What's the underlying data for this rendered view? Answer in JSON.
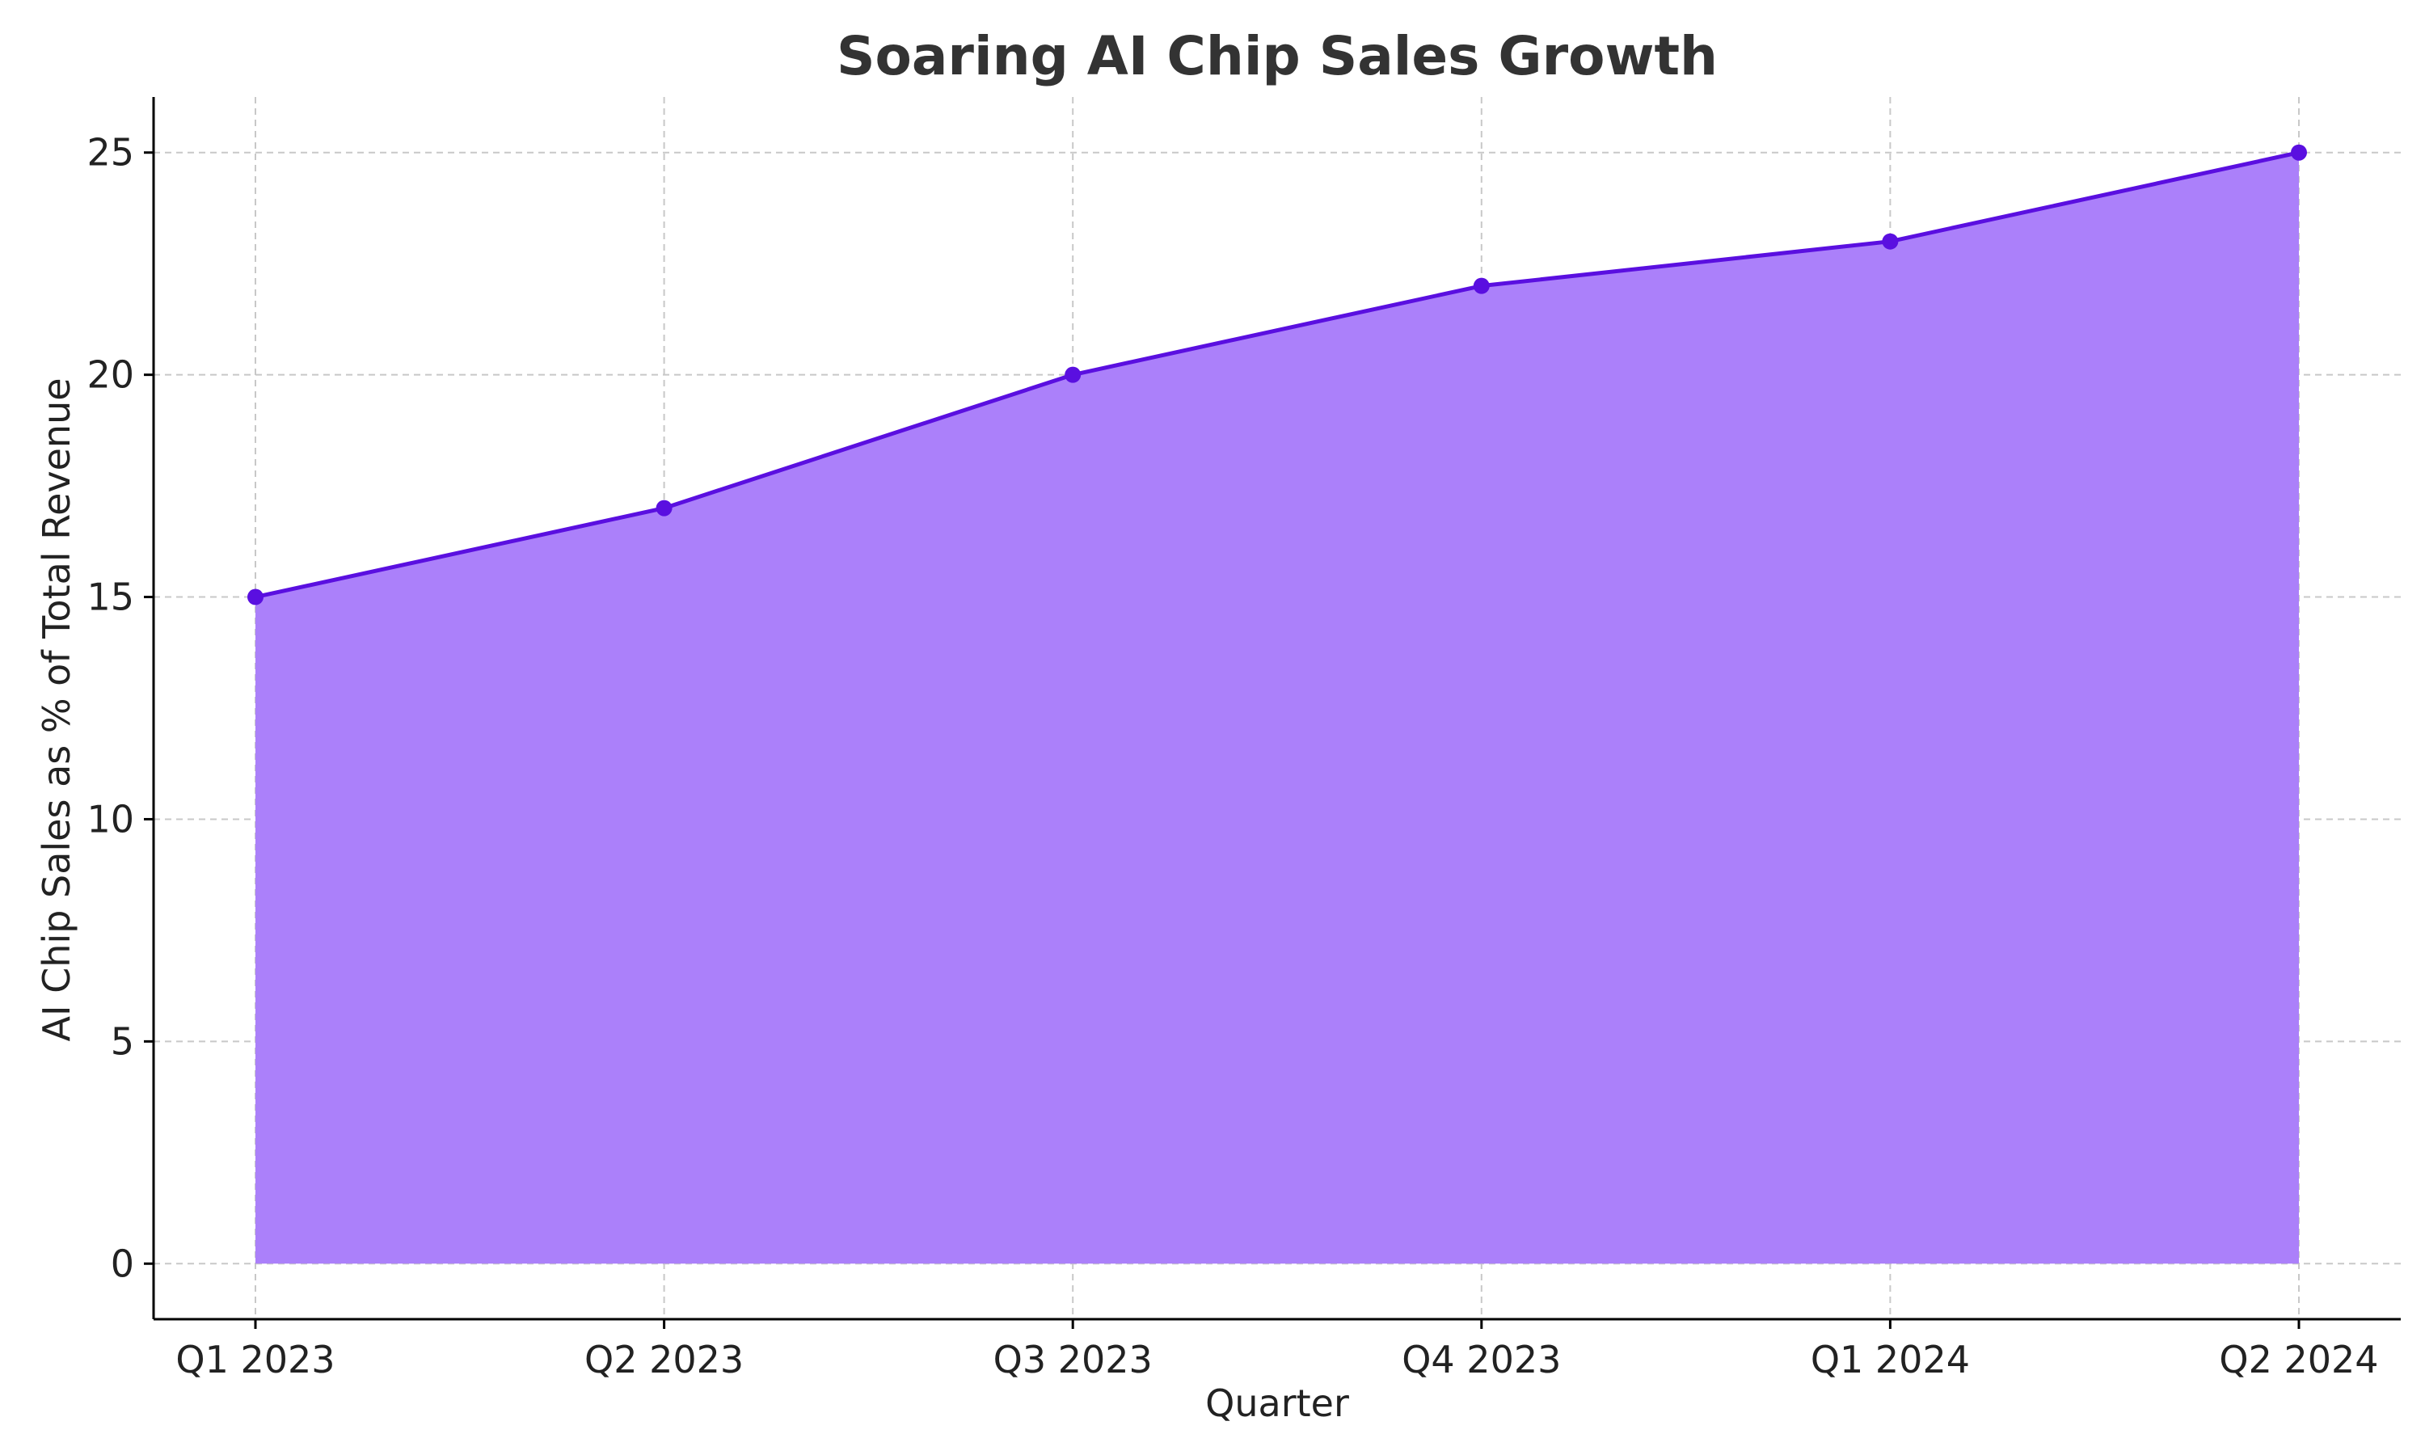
{
  "chart_data": {
    "type": "area",
    "title": "Soaring AI Chip Sales Growth",
    "xlabel": "Quarter",
    "ylabel": "AI Chip Sales as % of Total Revenue",
    "categories": [
      "Q1 2023",
      "Q2 2023",
      "Q3 2023",
      "Q4 2023",
      "Q1 2024",
      "Q2 2024"
    ],
    "series": [
      {
        "values": [
          15,
          17,
          20,
          22,
          23,
          25
        ]
      }
    ],
    "ylim": [
      -1.25,
      26.25
    ],
    "yticks": [
      0,
      5,
      10,
      15,
      20,
      25
    ],
    "grid": true,
    "markers": true,
    "colors": {
      "line": "#5a0fe0",
      "fill": "#ab80fa",
      "marker": "#5a0fe0"
    }
  }
}
